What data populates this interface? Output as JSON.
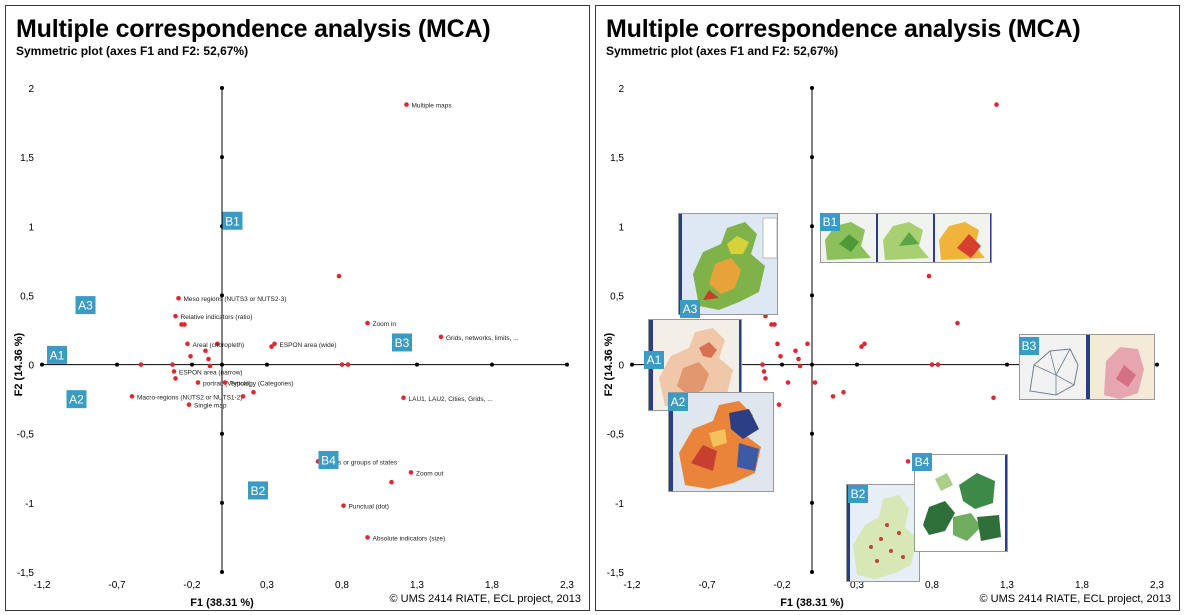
{
  "panels": [
    {
      "title": "Multiple correspondence analysis (MCA)",
      "subtitle": "Symmetric plot (axes F1 and F2: 52,67%)",
      "credit": "© UMS 2414 RIATE, ECL project, 2013"
    },
    {
      "title": "Multiple correspondence analysis (MCA)",
      "subtitle": "Symmetric plot (axes F1 and F2: 52,67%)",
      "credit": "© UMS 2414 RIATE, ECL project, 2013"
    }
  ],
  "colors": {
    "point": "#e0262f",
    "badge": "#3a9cc4",
    "axis": "#000000",
    "map_stripe": "#2a3d8c"
  },
  "chart_data": [
    {
      "type": "scatter",
      "title": "Multiple correspondence analysis (MCA)",
      "subtitle": "Symmetric plot (axes F1 and F2: 52,67%)",
      "xlabel": "F1 (38.31 %)",
      "ylabel": "F2 (14.36 %)",
      "xlim": [
        -1.2,
        2.3
      ],
      "ylim": [
        -1.5,
        2
      ],
      "xticks": [
        -1.2,
        -0.7,
        -0.2,
        0.3,
        0.8,
        1.3,
        1.8,
        2.3
      ],
      "xtick_labels": [
        "-1,2",
        "-0,7",
        "-0,2",
        "0,3",
        "0,8",
        "1,3",
        "1,8",
        "2,3"
      ],
      "yticks": [
        2,
        1.5,
        1,
        0.5,
        0,
        -0.5,
        -1,
        -1.5
      ],
      "ytick_labels": [
        "2",
        "1,5",
        "1",
        "0,5",
        "0",
        "-0,5",
        "-1",
        "-1,5"
      ],
      "points": [
        {
          "x": 1.23,
          "y": 1.88,
          "label": "Multiple maps"
        },
        {
          "x": 0.78,
          "y": 0.64,
          "label": ""
        },
        {
          "x": 0.97,
          "y": 0.3,
          "label": "Zoom in"
        },
        {
          "x": 1.46,
          "y": 0.2,
          "label": "Grids, networks, limits, ..."
        },
        {
          "x": 0.35,
          "y": 0.15,
          "label": "ESPON area (wide)"
        },
        {
          "x": 0.33,
          "y": 0.13,
          "label": ""
        },
        {
          "x": 0.8,
          "y": 0.0,
          "label": ""
        },
        {
          "x": 0.84,
          "y": 0.0,
          "label": ""
        },
        {
          "x": 1.21,
          "y": -0.24,
          "label": "LAU1, LAU2, Cities, Grids, ..."
        },
        {
          "x": -0.29,
          "y": 0.48,
          "label": "Meso regions (NUTS3 or  NUTS2-3)"
        },
        {
          "x": -0.31,
          "y": 0.35,
          "label": "Relative indicators (ratio)"
        },
        {
          "x": -0.27,
          "y": 0.29,
          "label": ""
        },
        {
          "x": -0.25,
          "y": 0.29,
          "label": ""
        },
        {
          "x": -0.03,
          "y": 0.15,
          "label": ""
        },
        {
          "x": -0.23,
          "y": 0.15,
          "label": "Areal (choropleth)"
        },
        {
          "x": -0.21,
          "y": 0.06,
          "label": ""
        },
        {
          "x": -0.11,
          "y": 0.1,
          "label": ""
        },
        {
          "x": -0.09,
          "y": 0.04,
          "label": ""
        },
        {
          "x": -0.08,
          "y": -0.01,
          "label": ""
        },
        {
          "x": -0.33,
          "y": 0.0,
          "label": ""
        },
        {
          "x": -0.54,
          "y": 0.0,
          "label": ""
        },
        {
          "x": -0.32,
          "y": -0.05,
          "label": "ESPON area (narrow)"
        },
        {
          "x": -0.31,
          "y": -0.1,
          "label": ""
        },
        {
          "x": -0.16,
          "y": -0.13,
          "label": "portrait (Vertical)"
        },
        {
          "x": -0.6,
          "y": -0.23,
          "label": "Macro-regions (NUTS2 or NUTS1-2)"
        },
        {
          "x": -0.22,
          "y": -0.29,
          "label": "Single map"
        },
        {
          "x": 0.02,
          "y": -0.13,
          "label": "Typology (Categories)"
        },
        {
          "x": 0.14,
          "y": -0.23,
          "label": ""
        },
        {
          "x": 0.21,
          "y": -0.2,
          "label": ""
        },
        {
          "x": 0.64,
          "y": -0.7,
          "label": "States or groups of states"
        },
        {
          "x": 1.26,
          "y": -0.78,
          "label": "Zoom out"
        },
        {
          "x": 1.13,
          "y": -0.85,
          "label": ""
        },
        {
          "x": 0.81,
          "y": -1.02,
          "label": "Punctual (dot)"
        },
        {
          "x": 0.97,
          "y": -1.25,
          "label": "Absolute indicators (size)"
        }
      ],
      "groups": [
        {
          "label": "A1",
          "x": -1.1,
          "y": 0.07
        },
        {
          "label": "A2",
          "x": -0.97,
          "y": -0.25
        },
        {
          "label": "A3",
          "x": -0.91,
          "y": 0.43
        },
        {
          "label": "B1",
          "x": 0.07,
          "y": 1.04
        },
        {
          "label": "B2",
          "x": 0.24,
          "y": -0.91
        },
        {
          "label": "B3",
          "x": 1.2,
          "y": 0.16
        },
        {
          "label": "B4",
          "x": 0.71,
          "y": -0.69
        }
      ]
    },
    {
      "type": "scatter",
      "title": "Multiple correspondence analysis (MCA)",
      "subtitle": "Symmetric plot (axes F1 and F2: 52,67%)",
      "xlabel": "F1 (38.31 %)",
      "ylabel": "F2 (14.36 %)",
      "xlim": [
        -1.2,
        2.3
      ],
      "ylim": [
        -1.5,
        2
      ],
      "xticks": [
        -1.2,
        -0.7,
        -0.2,
        0.3,
        0.8,
        1.3,
        1.8,
        2.3
      ],
      "xtick_labels": [
        "-1,2",
        "-0,7",
        "-0,2",
        "0,3",
        "0,8",
        "1,3",
        "1,8",
        "2,3"
      ],
      "yticks": [
        2,
        1.5,
        1,
        0.5,
        0,
        -0.5,
        -1,
        -1.5
      ],
      "ytick_labels": [
        "2",
        "1,5",
        "1",
        "0,5",
        "0",
        "-0,5",
        "-1",
        "-1,5"
      ],
      "points": [
        {
          "x": 1.23,
          "y": 1.88
        },
        {
          "x": 0.78,
          "y": 0.64
        },
        {
          "x": 0.97,
          "y": 0.3
        },
        {
          "x": 1.46,
          "y": 0.2
        },
        {
          "x": 0.35,
          "y": 0.15
        },
        {
          "x": 0.33,
          "y": 0.13
        },
        {
          "x": 0.8,
          "y": 0.0
        },
        {
          "x": 0.84,
          "y": 0.0
        },
        {
          "x": 1.21,
          "y": -0.24
        },
        {
          "x": -0.29,
          "y": 0.48
        },
        {
          "x": -0.31,
          "y": 0.35
        },
        {
          "x": -0.27,
          "y": 0.29
        },
        {
          "x": -0.25,
          "y": 0.29
        },
        {
          "x": -0.03,
          "y": 0.15
        },
        {
          "x": -0.23,
          "y": 0.15
        },
        {
          "x": -0.21,
          "y": 0.06
        },
        {
          "x": -0.11,
          "y": 0.1
        },
        {
          "x": -0.09,
          "y": 0.04
        },
        {
          "x": -0.08,
          "y": -0.01
        },
        {
          "x": -0.33,
          "y": 0.0
        },
        {
          "x": -0.54,
          "y": 0.0
        },
        {
          "x": -0.32,
          "y": -0.05
        },
        {
          "x": -0.31,
          "y": -0.1
        },
        {
          "x": -0.16,
          "y": -0.13
        },
        {
          "x": -0.6,
          "y": -0.23
        },
        {
          "x": -0.22,
          "y": -0.29
        },
        {
          "x": 0.02,
          "y": -0.13
        },
        {
          "x": 0.14,
          "y": -0.23
        },
        {
          "x": 0.21,
          "y": -0.2
        },
        {
          "x": 0.64,
          "y": -0.7
        },
        {
          "x": 1.26,
          "y": -0.78
        },
        {
          "x": 1.13,
          "y": -0.85
        },
        {
          "x": 0.81,
          "y": -1.02
        },
        {
          "x": 0.97,
          "y": -1.25
        }
      ],
      "groups": [
        {
          "label": "A1",
          "thumbnail": "choropleth-map-beige"
        },
        {
          "label": "A2",
          "thumbnail": "choropleth-map-blue-orange"
        },
        {
          "label": "A3",
          "thumbnail": "choropleth-map-green-orange"
        },
        {
          "label": "B1",
          "thumbnail": "three-green-maps"
        },
        {
          "label": "B2",
          "thumbnail": "dot-map-europe"
        },
        {
          "label": "B3",
          "thumbnail": "network-maps"
        },
        {
          "label": "B4",
          "thumbnail": "dark-green-states-map"
        }
      ]
    }
  ]
}
